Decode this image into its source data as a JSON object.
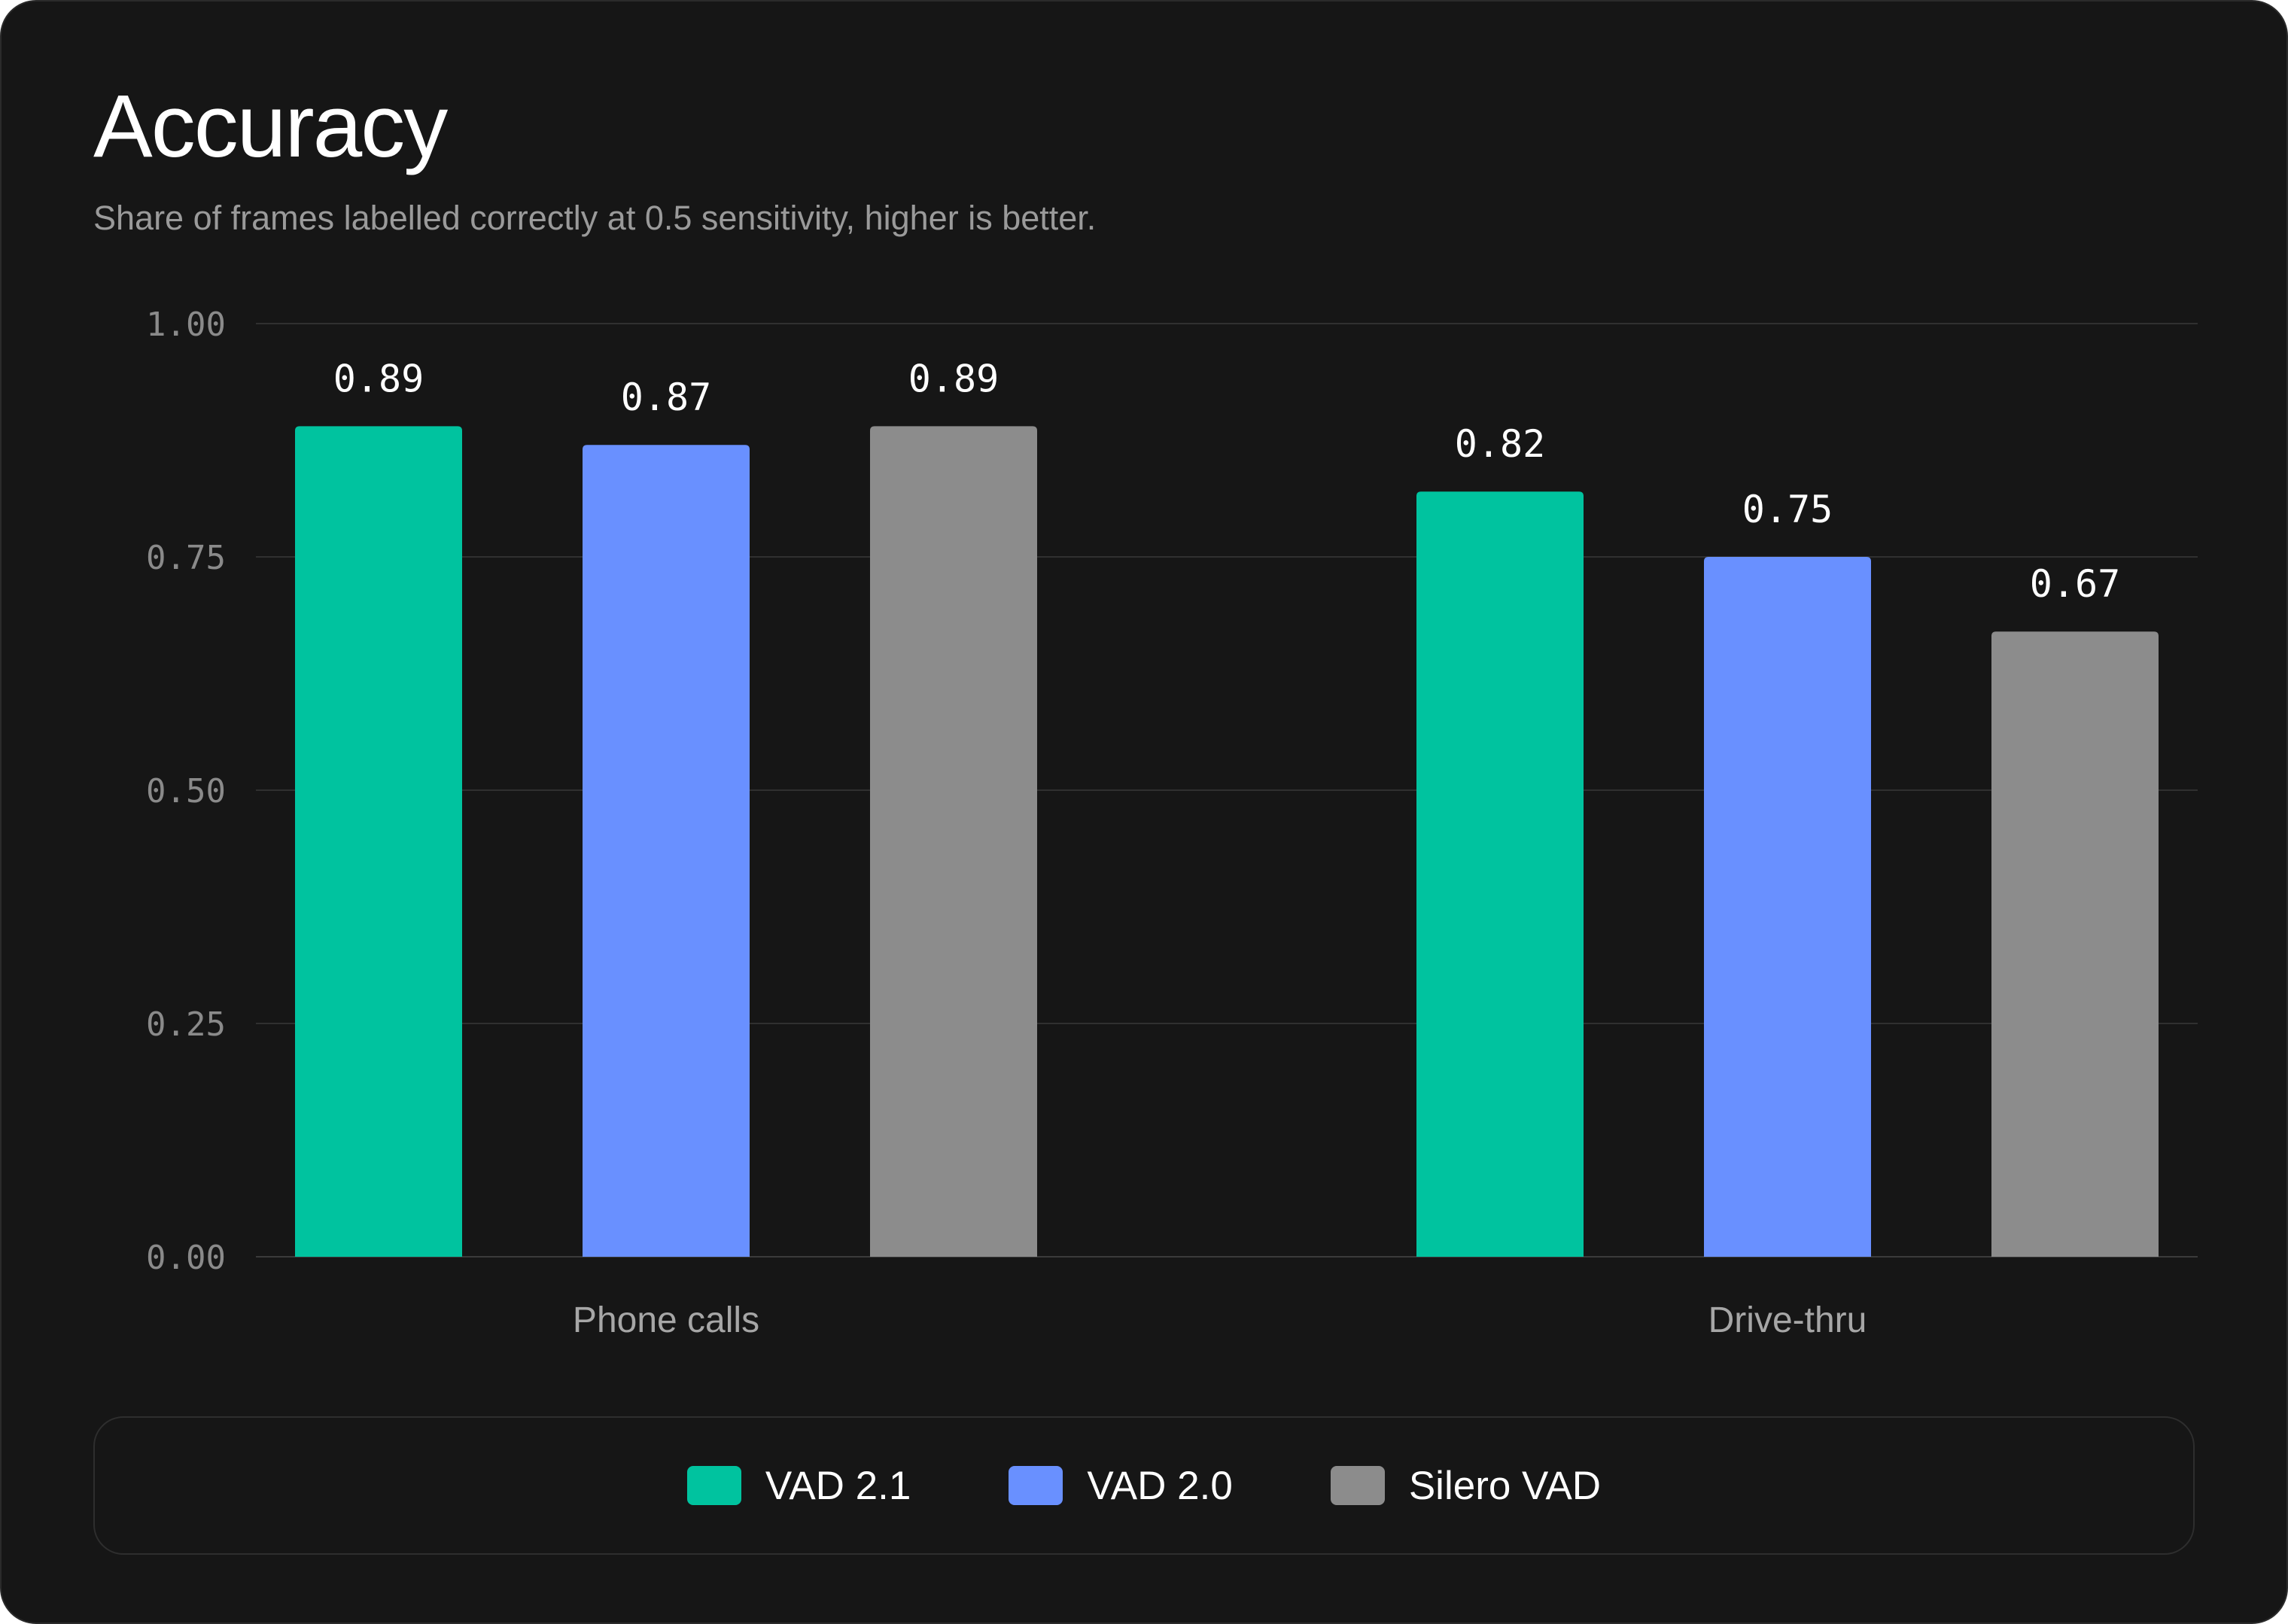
{
  "colors": {
    "background": "#161616",
    "grid": "#303030",
    "tick_label": "#8a8a8a",
    "category_label": "#a6a6a6",
    "data_label": "#ffffff"
  },
  "chart_data": {
    "type": "bar",
    "title": "Accuracy",
    "subtitle": "Share of frames labelled correctly at 0.5 sensitivity, higher is better.",
    "categories": [
      "Phone calls",
      "Drive-thru"
    ],
    "series": [
      {
        "name": "VAD 2.1",
        "color": "#00c39f",
        "values": [
          0.89,
          0.82
        ],
        "labels": [
          "0.89",
          "0.82"
        ]
      },
      {
        "name": "VAD 2.0",
        "color": "#6990ff",
        "values": [
          0.87,
          0.75
        ],
        "labels": [
          "0.87",
          "0.75"
        ]
      },
      {
        "name": "Silero VAD",
        "color": "#8c8c8c",
        "values": [
          0.89,
          0.67
        ],
        "labels": [
          "0.89",
          "0.67"
        ]
      }
    ],
    "ylim": [
      0,
      1
    ],
    "yticks": [
      0,
      0.25,
      0.5,
      0.75,
      1
    ],
    "ytick_labels": [
      "0.00",
      "0.25",
      "0.50",
      "0.75",
      "1.00"
    ],
    "grid": true,
    "legend_position": "bottom"
  }
}
